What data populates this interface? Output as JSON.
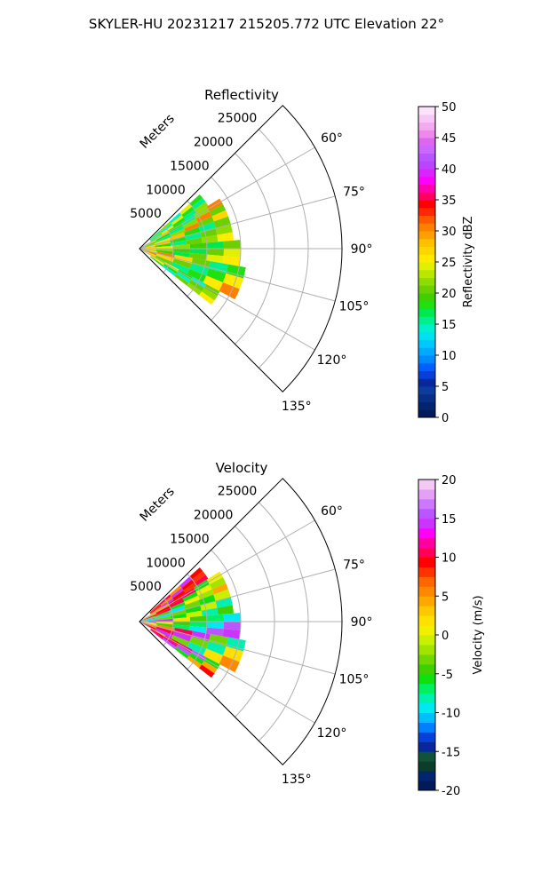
{
  "figure": {
    "suptitle": "SKYLER-HU  20231217  215205.772 UTC Elevation 22°"
  },
  "chart_data": [
    {
      "type": "heatmap",
      "projection": "polar-sector",
      "title": "Reflectivity",
      "range_axis_label": "Meters",
      "range_ticks": [
        5000,
        10000,
        15000,
        20000,
        25000
      ],
      "range_tick_labels": [
        "5000",
        "10000",
        "15000",
        "20000",
        "25000"
      ],
      "theta_range_deg": [
        45,
        135
      ],
      "theta_ticks_deg": [
        60,
        75,
        90,
        105,
        120,
        135
      ],
      "theta_tick_labels": [
        "60°",
        "75°",
        "90°",
        "105°",
        "120°",
        "135°"
      ],
      "grid": true,
      "colorbar": {
        "label": "Reflectivity dBZ",
        "range": [
          0,
          50
        ],
        "ticks": [
          0,
          5,
          10,
          15,
          20,
          25,
          30,
          35,
          40,
          45,
          50
        ],
        "colors": [
          "#021a5c",
          "#03246e",
          "#062f85",
          "#0b3c9e",
          "#06289a",
          "#0540d8",
          "#0060ff",
          "#0088ff",
          "#00aaff",
          "#00c8ff",
          "#00e0f0",
          "#00f0cc",
          "#00f090",
          "#00e850",
          "#20e010",
          "#40d000",
          "#6ad000",
          "#90dc00",
          "#b8e800",
          "#e0f000",
          "#ffea00",
          "#ffd500",
          "#ffc000",
          "#ffa000",
          "#ff8000",
          "#ff5a00",
          "#ff2800",
          "#ff0000",
          "#ff0060",
          "#ff00b0",
          "#ff00ff",
          "#dd22ff",
          "#bb44ff",
          "#b855ff",
          "#cc66ff",
          "#dd66ee",
          "#ee88ee",
          "#f3aaf0",
          "#f7c8f5",
          "#fbe4fa"
        ]
      },
      "sectors": [
        {
          "az": [
            48,
            58
          ],
          "range_m": [
            2000,
            12000
          ],
          "values": [
            16,
            22,
            14,
            24,
            18
          ]
        },
        {
          "az": [
            58,
            70
          ],
          "range_m": [
            500,
            14000
          ],
          "values": [
            20,
            27,
            18,
            15,
            22,
            31
          ]
        },
        {
          "az": [
            70,
            85
          ],
          "range_m": [
            0,
            14000
          ],
          "values": [
            22,
            25,
            28,
            18,
            16,
            21
          ]
        },
        {
          "az": [
            85,
            100
          ],
          "range_m": [
            0,
            15000
          ],
          "values": [
            24,
            26,
            22,
            19,
            17,
            20
          ]
        },
        {
          "az": [
            100,
            118
          ],
          "range_m": [
            0,
            16000
          ],
          "values": [
            25,
            30,
            27,
            20,
            15,
            18
          ]
        },
        {
          "az": [
            118,
            128
          ],
          "range_m": [
            2000,
            13500
          ],
          "values": [
            22,
            26,
            18,
            14,
            21
          ]
        }
      ]
    },
    {
      "type": "heatmap",
      "projection": "polar-sector",
      "title": "Velocity",
      "range_axis_label": "Meters",
      "range_ticks": [
        5000,
        10000,
        15000,
        20000,
        25000
      ],
      "range_tick_labels": [
        "5000",
        "10000",
        "15000",
        "20000",
        "25000"
      ],
      "theta_range_deg": [
        45,
        135
      ],
      "theta_ticks_deg": [
        60,
        75,
        90,
        105,
        120,
        135
      ],
      "theta_tick_labels": [
        "60°",
        "75°",
        "90°",
        "105°",
        "120°",
        "135°"
      ],
      "grid": true,
      "colorbar": {
        "label": "Velocity (m/s)",
        "range": [
          -20,
          20
        ],
        "ticks": [
          -20,
          -15,
          -10,
          -5,
          0,
          5,
          10,
          15,
          20
        ],
        "colors": [
          "#021a5c",
          "#03246e",
          "#0a3d2a",
          "#10533a",
          "#06289a",
          "#0540d8",
          "#0080ff",
          "#00bfff",
          "#00e8f0",
          "#00f0b0",
          "#00f060",
          "#10e010",
          "#40d000",
          "#70d800",
          "#a0e400",
          "#c8f000",
          "#f0f000",
          "#ffe000",
          "#ffc800",
          "#ffa800",
          "#ff8800",
          "#ff6600",
          "#ff3300",
          "#ff0000",
          "#ff0055",
          "#ff00a0",
          "#ff00ff",
          "#cc33ff",
          "#bb55ff",
          "#cc77ff",
          "#e3a0f5",
          "#f3c8f3"
        ]
      },
      "sectors": [
        {
          "az": [
            48,
            58
          ],
          "range_m": [
            2000,
            12000
          ],
          "values": [
            8,
            11,
            6,
            14,
            9
          ]
        },
        {
          "az": [
            58,
            70
          ],
          "range_m": [
            500,
            14000
          ],
          "values": [
            -2,
            4,
            9,
            11,
            -6,
            0
          ]
        },
        {
          "az": [
            70,
            85
          ],
          "range_m": [
            0,
            14000
          ],
          "values": [
            -8,
            -5,
            -9,
            -3,
            -6,
            -1
          ]
        },
        {
          "az": [
            85,
            100
          ],
          "range_m": [
            0,
            15000
          ],
          "values": [
            16,
            14,
            2,
            -4,
            -7,
            -10
          ]
        },
        {
          "az": [
            100,
            118
          ],
          "range_m": [
            0,
            16000
          ],
          "values": [
            2,
            6,
            10,
            14,
            -3,
            -8
          ]
        },
        {
          "az": [
            118,
            128
          ],
          "range_m": [
            2000,
            13500
          ],
          "values": [
            4,
            9,
            12,
            15,
            -6
          ]
        }
      ]
    }
  ]
}
